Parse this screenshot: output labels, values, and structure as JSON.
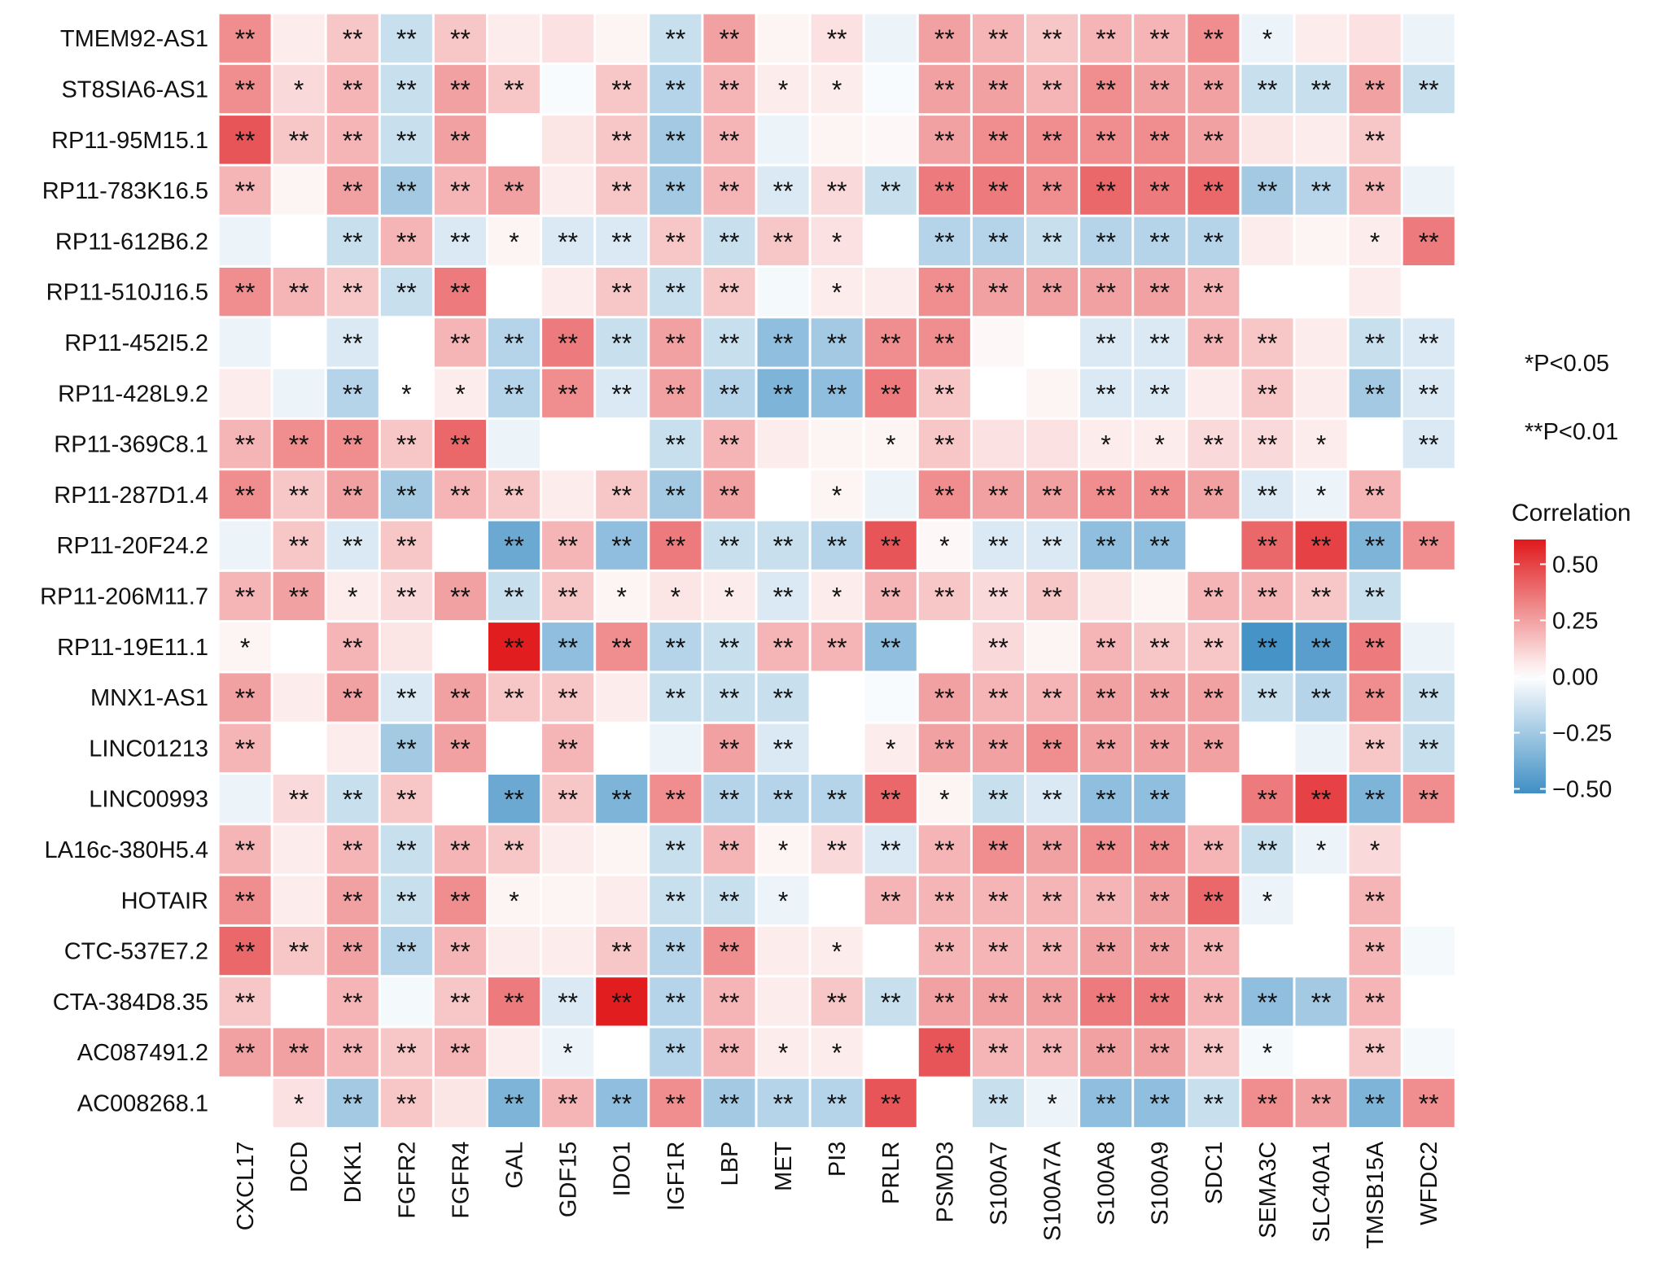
{
  "chart_data": {
    "type": "heatmap",
    "x_categories": [
      "CXCL17",
      "DCD",
      "DKK1",
      "FGFR2",
      "FGFR4",
      "GAL",
      "GDF15",
      "IDO1",
      "IGF1R",
      "LBP",
      "MET",
      "PI3",
      "PRLR",
      "PSMD3",
      "S100A7",
      "S100A7A",
      "S100A8",
      "S100A9",
      "SDC1",
      "SEMA3C",
      "SLC40A1",
      "TMSB15A",
      "WFDC2"
    ],
    "y_categories": [
      "TMEM92-AS1",
      "ST8SIA6-AS1",
      "RP11-95M15.1",
      "RP11-783K16.5",
      "RP11-612B6.2",
      "RP11-510J16.5",
      "RP11-452I5.2",
      "RP11-428L9.2",
      "RP11-369C8.1",
      "RP11-287D1.4",
      "RP11-20F24.2",
      "RP11-206M11.7",
      "RP11-19E11.1",
      "MNX1-AS1",
      "LINC01213",
      "LINC00993",
      "LA16c-380H5.4",
      "HOTAIR",
      "CTC-537E7.2",
      "CTA-384D8.35",
      "AC087491.2",
      "AC008268.1"
    ],
    "values": [
      [
        0.3,
        0.05,
        0.15,
        -0.15,
        0.15,
        0.05,
        0.08,
        0.03,
        -0.15,
        0.25,
        0.03,
        0.08,
        -0.05,
        0.25,
        0.2,
        0.15,
        0.2,
        0.2,
        0.3,
        -0.05,
        0.05,
        0.08,
        -0.05
      ],
      [
        0.3,
        0.1,
        0.2,
        -0.15,
        0.25,
        0.15,
        -0.02,
        0.15,
        -0.2,
        0.2,
        0.05,
        0.05,
        -0.02,
        0.25,
        0.25,
        0.2,
        0.3,
        0.25,
        0.25,
        -0.15,
        -0.15,
        0.25,
        -0.15
      ],
      [
        0.45,
        0.15,
        0.2,
        -0.15,
        0.25,
        0.0,
        0.07,
        0.15,
        -0.25,
        0.2,
        -0.05,
        0.03,
        0.02,
        0.25,
        0.3,
        0.3,
        0.3,
        0.3,
        0.25,
        0.07,
        0.05,
        0.15,
        0.0
      ],
      [
        0.2,
        0.03,
        0.25,
        -0.25,
        0.2,
        0.25,
        0.05,
        0.15,
        -0.25,
        0.2,
        -0.1,
        0.1,
        -0.15,
        0.35,
        0.35,
        0.3,
        0.4,
        0.35,
        0.4,
        -0.25,
        -0.2,
        0.2,
        -0.05
      ],
      [
        -0.05,
        0.0,
        -0.15,
        0.2,
        -0.1,
        0.03,
        -0.1,
        -0.1,
        0.15,
        -0.15,
        0.15,
        0.08,
        0.0,
        -0.2,
        -0.2,
        -0.15,
        -0.2,
        -0.2,
        -0.2,
        0.05,
        0.03,
        0.05,
        0.35
      ],
      [
        0.3,
        0.2,
        0.15,
        -0.15,
        0.35,
        0.0,
        0.05,
        0.15,
        -0.15,
        0.15,
        -0.03,
        0.05,
        0.05,
        0.3,
        0.25,
        0.25,
        0.25,
        0.25,
        0.2,
        0.0,
        0.0,
        0.05,
        0.0
      ],
      [
        -0.05,
        0.0,
        -0.1,
        0.0,
        0.2,
        -0.2,
        0.35,
        -0.15,
        0.25,
        -0.15,
        -0.3,
        -0.25,
        0.3,
        0.3,
        0.02,
        0.0,
        -0.1,
        -0.1,
        0.2,
        0.15,
        0.05,
        -0.15,
        -0.1
      ],
      [
        0.05,
        -0.05,
        -0.2,
        0.0,
        0.05,
        -0.2,
        0.3,
        -0.1,
        0.25,
        -0.2,
        -0.35,
        -0.3,
        0.35,
        0.15,
        0.0,
        0.03,
        -0.1,
        -0.1,
        0.05,
        0.15,
        0.05,
        -0.25,
        -0.1
      ],
      [
        0.2,
        0.3,
        0.3,
        0.15,
        0.4,
        -0.05,
        0.0,
        0.0,
        -0.15,
        0.2,
        0.05,
        0.03,
        0.03,
        0.15,
        0.08,
        0.08,
        0.05,
        0.05,
        0.1,
        0.1,
        0.05,
        0.0,
        -0.1
      ],
      [
        0.3,
        0.15,
        0.25,
        -0.25,
        0.2,
        0.15,
        0.05,
        0.15,
        -0.25,
        0.25,
        0.0,
        0.03,
        -0.05,
        0.3,
        0.25,
        0.25,
        0.3,
        0.3,
        0.25,
        -0.1,
        -0.05,
        0.2,
        0.0
      ],
      [
        -0.05,
        0.15,
        -0.1,
        0.15,
        0.0,
        -0.4,
        0.2,
        -0.3,
        0.35,
        -0.15,
        -0.15,
        -0.2,
        0.45,
        0.02,
        -0.1,
        -0.1,
        -0.3,
        -0.3,
        0.0,
        0.4,
        0.5,
        -0.35,
        0.3
      ],
      [
        0.2,
        0.25,
        0.05,
        0.1,
        0.25,
        -0.15,
        0.15,
        0.03,
        0.07,
        0.05,
        -0.1,
        0.05,
        0.2,
        0.15,
        0.1,
        0.15,
        0.07,
        0.03,
        0.2,
        0.2,
        0.15,
        -0.15,
        0.0
      ],
      [
        0.03,
        0.0,
        0.2,
        0.07,
        0.0,
        0.6,
        -0.3,
        0.3,
        -0.2,
        -0.15,
        0.2,
        0.2,
        -0.3,
        0.0,
        0.1,
        0.03,
        0.2,
        0.15,
        0.15,
        -0.5,
        -0.45,
        0.35,
        -0.05
      ],
      [
        0.25,
        0.05,
        0.25,
        -0.1,
        0.25,
        0.15,
        0.15,
        0.05,
        -0.15,
        -0.15,
        -0.15,
        0.0,
        -0.02,
        0.25,
        0.2,
        0.2,
        0.25,
        0.25,
        0.25,
        -0.15,
        -0.2,
        0.3,
        -0.15
      ],
      [
        0.2,
        0.0,
        0.05,
        -0.25,
        0.25,
        0.0,
        0.2,
        0.0,
        -0.05,
        0.25,
        -0.1,
        0.0,
        0.05,
        0.25,
        0.25,
        0.3,
        0.25,
        0.25,
        0.25,
        0.0,
        -0.05,
        0.15,
        -0.15
      ],
      [
        -0.05,
        0.1,
        -0.15,
        0.15,
        0.0,
        -0.4,
        0.15,
        -0.35,
        0.3,
        -0.2,
        -0.2,
        -0.2,
        0.4,
        0.03,
        -0.15,
        -0.1,
        -0.3,
        -0.3,
        0.0,
        0.35,
        0.5,
        -0.35,
        0.3
      ],
      [
        0.2,
        0.05,
        0.2,
        -0.15,
        0.2,
        0.15,
        0.05,
        0.03,
        -0.15,
        0.2,
        0.03,
        0.1,
        -0.1,
        0.2,
        0.3,
        0.25,
        0.3,
        0.3,
        0.2,
        -0.15,
        -0.05,
        0.1,
        0.0
      ],
      [
        0.3,
        0.05,
        0.25,
        -0.15,
        0.3,
        0.03,
        0.03,
        0.05,
        -0.15,
        -0.15,
        -0.05,
        0.0,
        0.2,
        0.2,
        0.2,
        0.2,
        0.2,
        0.25,
        0.4,
        -0.05,
        0.0,
        0.2,
        0.0
      ],
      [
        0.4,
        0.15,
        0.25,
        -0.2,
        0.2,
        0.05,
        0.05,
        0.15,
        -0.2,
        0.3,
        0.05,
        0.05,
        0.0,
        0.2,
        0.2,
        0.2,
        0.25,
        0.25,
        0.2,
        0.0,
        0.0,
        0.2,
        -0.03
      ],
      [
        0.15,
        0.0,
        0.2,
        -0.03,
        0.15,
        0.35,
        -0.1,
        0.6,
        -0.2,
        0.2,
        0.05,
        0.15,
        -0.15,
        0.25,
        0.25,
        0.25,
        0.35,
        0.35,
        0.2,
        -0.3,
        -0.25,
        0.2,
        0.0
      ],
      [
        0.25,
        0.25,
        0.2,
        0.15,
        0.2,
        0.05,
        -0.05,
        0.0,
        -0.2,
        0.2,
        0.05,
        0.05,
        0.0,
        0.45,
        0.2,
        0.2,
        0.25,
        0.25,
        0.15,
        -0.03,
        0.0,
        0.15,
        -0.03
      ],
      [
        0.0,
        0.08,
        -0.25,
        0.15,
        0.07,
        -0.35,
        0.2,
        -0.3,
        0.3,
        -0.25,
        -0.2,
        -0.2,
        0.45,
        0.0,
        -0.15,
        -0.05,
        -0.3,
        -0.3,
        -0.15,
        0.3,
        0.25,
        -0.35,
        0.3
      ]
    ],
    "labels": [
      [
        "**",
        null,
        "**",
        "**",
        "**",
        null,
        null,
        null,
        "**",
        "**",
        null,
        "**",
        null,
        "**",
        "**",
        "**",
        "**",
        "**",
        "**",
        "*",
        null,
        null,
        null
      ],
      [
        "**",
        "*",
        "**",
        "**",
        "**",
        "**",
        null,
        "**",
        "**",
        "**",
        "*",
        "*",
        null,
        "**",
        "**",
        "**",
        "**",
        "**",
        "**",
        "**",
        "**",
        "**",
        "**"
      ],
      [
        "**",
        "**",
        "**",
        "**",
        "**",
        null,
        null,
        "**",
        "**",
        "**",
        null,
        null,
        null,
        "**",
        "**",
        "**",
        "**",
        "**",
        "**",
        null,
        null,
        "**",
        null
      ],
      [
        "**",
        null,
        "**",
        "**",
        "**",
        "**",
        null,
        "**",
        "**",
        "**",
        "**",
        "**",
        "**",
        "**",
        "**",
        "**",
        "**",
        "**",
        "**",
        "**",
        "**",
        "**",
        null
      ],
      [
        null,
        null,
        "**",
        "**",
        "**",
        "*",
        "**",
        "**",
        "**",
        "**",
        "**",
        "*",
        null,
        "**",
        "**",
        "**",
        "**",
        "**",
        "**",
        null,
        null,
        "*",
        "**"
      ],
      [
        "**",
        "**",
        "**",
        "**",
        "**",
        null,
        null,
        "**",
        "**",
        "**",
        null,
        "*",
        null,
        "**",
        "**",
        "**",
        "**",
        "**",
        "**",
        null,
        null,
        null,
        null
      ],
      [
        null,
        null,
        "**",
        null,
        "**",
        "**",
        "**",
        "**",
        "**",
        "**",
        "**",
        "**",
        "**",
        "**",
        null,
        null,
        "**",
        "**",
        "**",
        "**",
        null,
        "**",
        "**"
      ],
      [
        null,
        null,
        "**",
        "*",
        "*",
        "**",
        "**",
        "**",
        "**",
        "**",
        "**",
        "**",
        "**",
        "**",
        null,
        null,
        "**",
        "**",
        null,
        "**",
        null,
        "**",
        "**"
      ],
      [
        "**",
        "**",
        "**",
        "**",
        "**",
        null,
        null,
        null,
        "**",
        "**",
        null,
        null,
        "*",
        "**",
        null,
        null,
        "*",
        "*",
        "**",
        "**",
        "*",
        null,
        "**"
      ],
      [
        "**",
        "**",
        "**",
        "**",
        "**",
        "**",
        null,
        "**",
        "**",
        "**",
        null,
        "*",
        null,
        "**",
        "**",
        "**",
        "**",
        "**",
        "**",
        "**",
        "*",
        "**",
        null
      ],
      [
        null,
        "**",
        "**",
        "**",
        null,
        "**",
        "**",
        "**",
        "**",
        "**",
        "**",
        "**",
        "**",
        "*",
        "**",
        "**",
        "**",
        "**",
        null,
        "**",
        "**",
        "**",
        "**"
      ],
      [
        "**",
        "**",
        "*",
        "**",
        "**",
        "**",
        "**",
        "*",
        "*",
        "*",
        "**",
        "*",
        "**",
        "**",
        "**",
        "**",
        null,
        null,
        "**",
        "**",
        "**",
        "**",
        null
      ],
      [
        "*",
        null,
        "**",
        null,
        null,
        "**",
        "**",
        "**",
        "**",
        "**",
        "**",
        "**",
        "**",
        null,
        "**",
        null,
        "**",
        "**",
        "**",
        "**",
        "**",
        "**",
        null
      ],
      [
        "**",
        null,
        "**",
        "**",
        "**",
        "**",
        "**",
        null,
        "**",
        "**",
        "**",
        null,
        null,
        "**",
        "**",
        "**",
        "**",
        "**",
        "**",
        "**",
        "**",
        "**",
        "**"
      ],
      [
        "**",
        null,
        null,
        "**",
        "**",
        null,
        "**",
        null,
        null,
        "**",
        "**",
        null,
        "*",
        "**",
        "**",
        "**",
        "**",
        "**",
        "**",
        null,
        null,
        "**",
        "**"
      ],
      [
        null,
        "**",
        "**",
        "**",
        null,
        "**",
        "**",
        "**",
        "**",
        "**",
        "**",
        "**",
        "**",
        "*",
        "**",
        "**",
        "**",
        "**",
        null,
        "**",
        "**",
        "**",
        "**"
      ],
      [
        "**",
        null,
        "**",
        "**",
        "**",
        "**",
        null,
        null,
        "**",
        "**",
        "*",
        "**",
        "**",
        "**",
        "**",
        "**",
        "**",
        "**",
        "**",
        "**",
        "*",
        "*",
        null
      ],
      [
        "**",
        null,
        "**",
        "**",
        "**",
        "*",
        null,
        null,
        "**",
        "**",
        "*",
        null,
        "**",
        "**",
        "**",
        "**",
        "**",
        "**",
        "**",
        "*",
        null,
        "**",
        null
      ],
      [
        "**",
        "**",
        "**",
        "**",
        "**",
        null,
        null,
        "**",
        "**",
        "**",
        null,
        "*",
        null,
        "**",
        "**",
        "**",
        "**",
        "**",
        "**",
        null,
        null,
        "**",
        null
      ],
      [
        "**",
        null,
        "**",
        null,
        "**",
        "**",
        "**",
        "**",
        "**",
        "**",
        null,
        "**",
        "**",
        "**",
        "**",
        "**",
        "**",
        "**",
        "**",
        "**",
        "**",
        "**",
        null
      ],
      [
        "**",
        "**",
        "**",
        "**",
        "**",
        null,
        "*",
        null,
        "**",
        "**",
        "*",
        "*",
        null,
        "**",
        "**",
        "**",
        "**",
        "**",
        "**",
        "*",
        null,
        "**",
        null
      ],
      [
        null,
        "*",
        "**",
        "**",
        null,
        "**",
        "**",
        "**",
        "**",
        "**",
        "**",
        "**",
        "**",
        null,
        "**",
        "*",
        "**",
        "**",
        "**",
        "**",
        "**",
        "**",
        "**"
      ]
    ],
    "legend_notes": [
      "*P<0.05",
      "**P<0.01"
    ],
    "colorbar": {
      "title": "Correlation",
      "lim": [
        -0.52,
        0.61
      ],
      "ticks": [
        {
          "value": 0.5,
          "label": "0.50"
        },
        {
          "value": 0.25,
          "label": "0.25"
        },
        {
          "value": 0,
          "label": "0.00"
        },
        {
          "value": -0.25,
          "label": "−0.25"
        },
        {
          "value": -0.5,
          "label": "−0.50"
        }
      ]
    },
    "colors": {
      "low": "#3f8fc5",
      "mid": "#ffffff",
      "high": "#e0191c"
    }
  }
}
